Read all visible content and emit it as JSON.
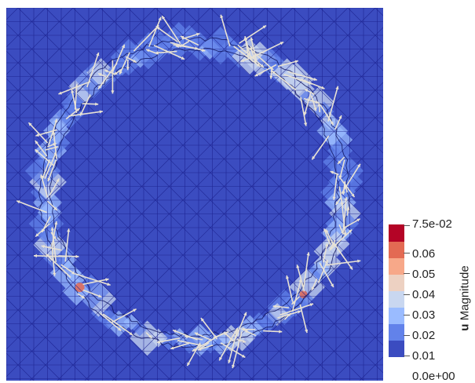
{
  "viewport": {
    "field_name": "u",
    "background_color": "#3b4cc0",
    "mesh_color": "#1a1f8c",
    "arrow_color": "#e8e2d4"
  },
  "colorbar": {
    "title_field": "u",
    "title_suffix": " Magnitude",
    "range": [
      0.0,
      0.075
    ],
    "labels": [
      "7.5e-02",
      "0.06",
      "0.05",
      "0.04",
      "0.03",
      "0.02",
      "0.01",
      "0.0e+00"
    ],
    "label_values": [
      0.075,
      0.06,
      0.05,
      0.04,
      0.03,
      0.02,
      0.01,
      0.0
    ],
    "colors": [
      "#3b4cc0",
      "#6282ea",
      "#9abbff",
      "#c9d7f0",
      "#edd1c2",
      "#f7a889",
      "#e36a53",
      "#b40426"
    ]
  }
}
